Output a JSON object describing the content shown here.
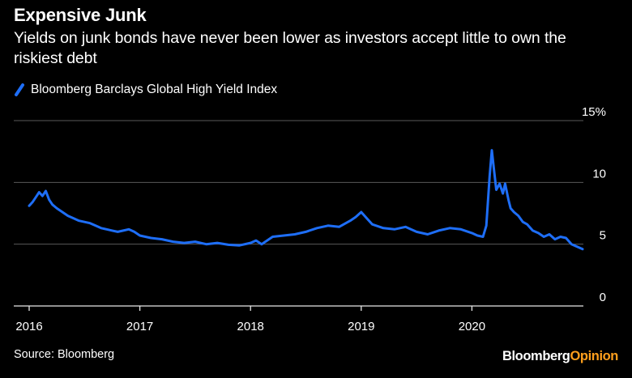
{
  "header": {
    "title": "Expensive Junk",
    "subtitle": "Yields on junk bonds have never been lower as investors accept little to own the riskiest debt"
  },
  "legend": {
    "label": "Bloomberg Barclays Global High Yield Index",
    "color": "#1e6ef7"
  },
  "footer": {
    "source": "Source: Bloomberg",
    "brand_part1": "Bloomberg",
    "brand_part2": "Opinion",
    "brand_color2": "#ff9f1c"
  },
  "chart_data": {
    "type": "line",
    "title": "Expensive Junk",
    "subtitle": "Yields on junk bonds have never been lower as investors accept little to own the riskiest debt",
    "xlabel": "",
    "ylabel": "",
    "xlim": [
      2016.0,
      2021.3
    ],
    "ylim": [
      0,
      15
    ],
    "y_ticks": [
      0,
      5,
      10,
      15
    ],
    "y_tick_labels": [
      "0",
      "5",
      "10",
      "15%"
    ],
    "x_ticks": [
      2016,
      2017,
      2018,
      2019,
      2020
    ],
    "x_tick_labels": [
      "2016",
      "2017",
      "2018",
      "2019",
      "2020"
    ],
    "grid": "horizontal",
    "line_color": "#1e6ef7",
    "series": [
      {
        "name": "Bloomberg Barclays Global High Yield Index",
        "x": [
          2016.0,
          2016.03,
          2016.06,
          2016.09,
          2016.12,
          2016.15,
          2016.18,
          2016.21,
          2016.25,
          2016.3,
          2016.35,
          2016.4,
          2016.45,
          2016.5,
          2016.55,
          2016.6,
          2016.65,
          2016.7,
          2016.75,
          2016.8,
          2016.85,
          2016.9,
          2016.95,
          2017.0,
          2017.1,
          2017.2,
          2017.3,
          2017.4,
          2017.5,
          2017.6,
          2017.7,
          2017.8,
          2017.9,
          2018.0,
          2018.05,
          2018.1,
          2018.2,
          2018.3,
          2018.4,
          2018.5,
          2018.6,
          2018.7,
          2018.8,
          2018.9,
          2018.95,
          2019.0,
          2019.05,
          2019.1,
          2019.2,
          2019.3,
          2019.4,
          2019.5,
          2019.6,
          2019.7,
          2019.8,
          2019.9,
          2020.0,
          2020.05,
          2020.1,
          2020.13,
          2020.16,
          2020.18,
          2020.2,
          2020.22,
          2020.25,
          2020.28,
          2020.3,
          2020.33,
          2020.35,
          2020.38,
          2020.42,
          2020.46,
          2020.5,
          2020.55,
          2020.6,
          2020.65,
          2020.7,
          2020.75,
          2020.8,
          2020.85,
          2020.9,
          2020.95,
          2021.0
        ],
        "values": [
          8.1,
          8.4,
          8.8,
          9.2,
          8.9,
          9.3,
          8.6,
          8.2,
          7.9,
          7.6,
          7.3,
          7.1,
          6.9,
          6.8,
          6.7,
          6.5,
          6.3,
          6.2,
          6.1,
          6.0,
          6.1,
          6.2,
          6.0,
          5.7,
          5.5,
          5.4,
          5.2,
          5.1,
          5.2,
          5.0,
          5.1,
          4.95,
          4.9,
          5.1,
          5.3,
          5.0,
          5.6,
          5.7,
          5.8,
          6.0,
          6.3,
          6.5,
          6.4,
          6.9,
          7.2,
          7.6,
          7.1,
          6.6,
          6.3,
          6.2,
          6.4,
          6.0,
          5.8,
          6.1,
          6.3,
          6.2,
          5.9,
          5.7,
          5.6,
          6.5,
          10.5,
          12.6,
          11.0,
          9.4,
          9.9,
          9.1,
          9.9,
          8.6,
          7.9,
          7.6,
          7.3,
          6.8,
          6.6,
          6.1,
          5.9,
          5.6,
          5.8,
          5.4,
          5.6,
          5.5,
          5.0,
          4.8,
          4.6
        ]
      }
    ]
  }
}
